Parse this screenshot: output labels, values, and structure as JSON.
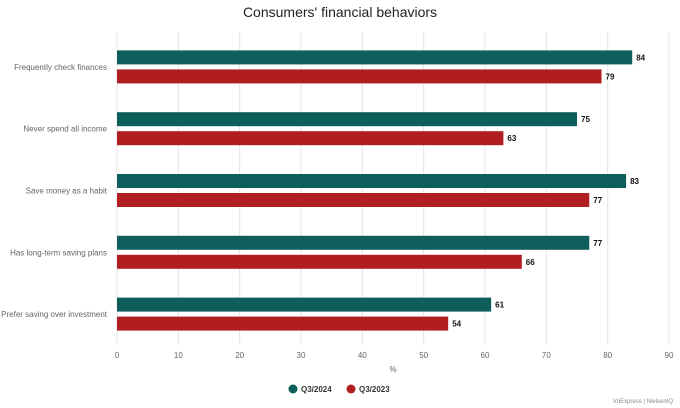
{
  "chart_data": {
    "type": "bar",
    "orientation": "horizontal",
    "title": "Consumers' financial behaviors",
    "categories": [
      "Frequently check finances",
      "Never spend all income",
      "Save money as a habit",
      "Has long-term saving plans",
      "Prefer saving over investment"
    ],
    "series": [
      {
        "name": "Q3/2024",
        "color": "#0e5f5c",
        "values": [
          84,
          75,
          83,
          77,
          61
        ]
      },
      {
        "name": "Q3/2023",
        "color": "#b01e22",
        "values": [
          79,
          63,
          77,
          66,
          54
        ]
      }
    ],
    "xlabel": "%",
    "xlim": [
      0,
      90
    ],
    "xticks": [
      0,
      10,
      20,
      30,
      40,
      50,
      60,
      70,
      80,
      90
    ],
    "grid": true,
    "legend_position": "bottom-center"
  },
  "source": "VnExpress | NielsenIQ"
}
